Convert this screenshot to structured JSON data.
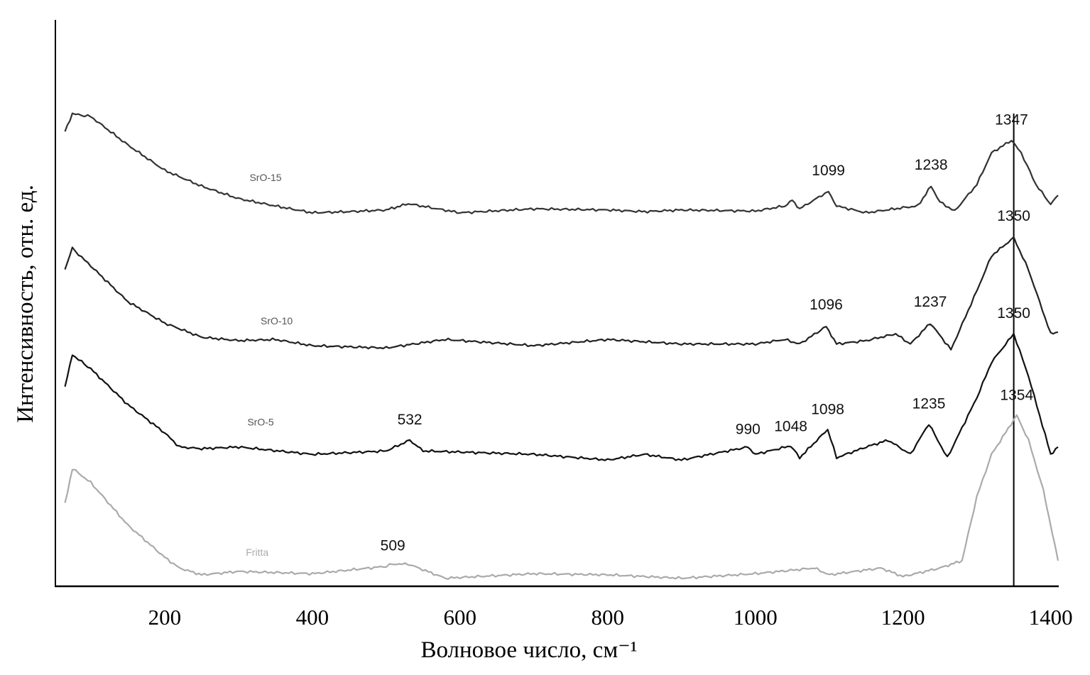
{
  "chart_data": {
    "type": "line",
    "title": "",
    "xlabel": "Волновое число, см⁻¹",
    "ylabel": "Интенсивность, отн. ед.",
    "xlim": [
      52,
      1410
    ],
    "ylim": [
      0,
      100
    ],
    "xticks": [
      200,
      400,
      600,
      800,
      1000,
      1200,
      1400
    ],
    "grid": false,
    "reference_line_x": 1350,
    "series": [
      {
        "name": "SrO-15",
        "color": "#333333",
        "label_at": [
          315,
          71.5
        ],
        "x": [
          65,
          75,
          100,
          150,
          200,
          250,
          300,
          350,
          400,
          450,
          500,
          530,
          600,
          700,
          800,
          850,
          900,
          1000,
          1040,
          1050,
          1060,
          1090,
          1099,
          1110,
          1150,
          1200,
          1220,
          1238,
          1250,
          1270,
          1300,
          1320,
          1347,
          1360,
          1380,
          1400,
          1410
        ],
        "y": [
          80.3,
          83.4,
          82.9,
          77.9,
          73.4,
          70.6,
          68.4,
          67.1,
          65.9,
          66.1,
          66.4,
          67.5,
          65.9,
          66.6,
          66.4,
          66.1,
          66.4,
          66.2,
          67.1,
          68.1,
          66.6,
          69.0,
          69.6,
          67.1,
          65.9,
          66.8,
          67.1,
          70.6,
          67.8,
          66.2,
          70.9,
          76.5,
          78.7,
          76.5,
          70.9,
          67.4,
          69.0
        ]
      },
      {
        "name": "SrO-10",
        "color": "#222222",
        "label_at": [
          330,
          46.2
        ],
        "x": [
          65,
          75,
          100,
          150,
          200,
          250,
          300,
          350,
          400,
          500,
          580,
          700,
          800,
          900,
          1000,
          1040,
          1060,
          1096,
          1110,
          1150,
          1190,
          1210,
          1237,
          1265,
          1300,
          1320,
          1350,
          1370,
          1400,
          1410
        ],
        "y": [
          56.0,
          59.6,
          56.5,
          50.2,
          46.4,
          43.9,
          43.3,
          43.5,
          42.4,
          42.0,
          43.5,
          42.4,
          43.5,
          42.7,
          42.7,
          43.5,
          42.7,
          45.8,
          42.7,
          43.3,
          44.5,
          42.7,
          46.4,
          41.7,
          52.1,
          58.3,
          61.5,
          55.8,
          44.5,
          44.8
        ]
      },
      {
        "name": "SrO-5",
        "color": "#111111",
        "label_at": [
          312,
          28.3
        ],
        "x": [
          65,
          75,
          100,
          150,
          200,
          220,
          250,
          300,
          400,
          500,
          532,
          550,
          700,
          800,
          850,
          900,
          990,
          1000,
          1048,
          1060,
          1098,
          1110,
          1150,
          1180,
          1210,
          1235,
          1260,
          1300,
          1320,
          1350,
          1370,
          1400,
          1410
        ],
        "y": [
          35.1,
          40.8,
          38.3,
          32.0,
          27.0,
          24.5,
          24.2,
          24.5,
          23.2,
          23.8,
          25.7,
          23.8,
          23.2,
          22.2,
          23.2,
          22.2,
          24.5,
          23.2,
          24.7,
          22.6,
          27.6,
          22.6,
          24.5,
          25.7,
          23.2,
          28.6,
          22.6,
          33.2,
          39.5,
          44.5,
          37.0,
          23.2,
          24.5
        ]
      },
      {
        "name": "Fritta",
        "color": "#aaaaaa",
        "label_at": [
          310,
          5.3
        ],
        "x": [
          65,
          75,
          100,
          150,
          200,
          220,
          250,
          300,
          400,
          500,
          509,
          530,
          580,
          700,
          800,
          900,
          1000,
          1080,
          1100,
          1170,
          1200,
          1250,
          1280,
          1300,
          1320,
          1354,
          1370,
          1390,
          1410
        ],
        "y": [
          14.4,
          20.7,
          18.2,
          10.7,
          5.0,
          3.1,
          1.9,
          2.5,
          2.1,
          3.4,
          3.8,
          3.8,
          1.3,
          2.1,
          1.9,
          1.3,
          2.1,
          3.1,
          1.9,
          3.1,
          1.6,
          3.1,
          4.4,
          15.7,
          23.2,
          30.1,
          25.7,
          16.9,
          4.4
        ]
      }
    ],
    "annotations": [
      {
        "text": "1347",
        "x": 1347,
        "y": 81.5
      },
      {
        "text": "1099",
        "x": 1099,
        "y": 72.5
      },
      {
        "text": "1238",
        "x": 1238,
        "y": 73.5
      },
      {
        "text": "1350",
        "x": 1350,
        "y": 64.5
      },
      {
        "text": "1096",
        "x": 1096,
        "y": 48.8
      },
      {
        "text": "1237",
        "x": 1237,
        "y": 49.3
      },
      {
        "text": "1350",
        "x": 1350,
        "y": 47.3
      },
      {
        "text": "532",
        "x": 532,
        "y": 28.5
      },
      {
        "text": "990",
        "x": 990,
        "y": 26.8
      },
      {
        "text": "1048",
        "x": 1048,
        "y": 27.3
      },
      {
        "text": "1098",
        "x": 1098,
        "y": 30.3
      },
      {
        "text": "1235",
        "x": 1235,
        "y": 31.3
      },
      {
        "text": "1354",
        "x": 1354,
        "y": 32.8
      },
      {
        "text": "509",
        "x": 509,
        "y": 6.2
      }
    ]
  }
}
